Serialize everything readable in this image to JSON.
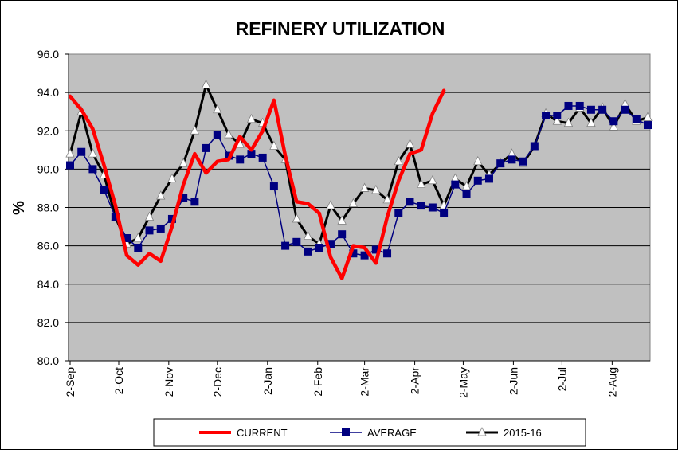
{
  "chart_data": {
    "type": "line",
    "title": "REFINERY UTILIZATION",
    "ylabel": "%",
    "xlabel": "",
    "ylim": [
      80.0,
      96.0
    ],
    "yticks": [
      "80.0",
      "82.0",
      "84.0",
      "86.0",
      "88.0",
      "90.0",
      "92.0",
      "94.0",
      "96.0"
    ],
    "xticks": [
      "2-Sep",
      "2-Oct",
      "2-Nov",
      "2-Dec",
      "2-Jan",
      "2-Feb",
      "2-Mar",
      "2-Apr",
      "2-May",
      "2-Jun",
      "2-Jul",
      "2-Aug"
    ],
    "x_range_weeks": [
      0,
      51
    ],
    "grid": "horizontal",
    "plot_background": "#C0C0C0",
    "legend_position": "bottom",
    "series": [
      {
        "name": "CURRENT",
        "color": "#FF0000",
        "marker": "none",
        "x": [
          0,
          1,
          2,
          3,
          4,
          5,
          6,
          7,
          8,
          9,
          10,
          11,
          12,
          13,
          14,
          15,
          16,
          17,
          18,
          19,
          20,
          21,
          22,
          23,
          24,
          25,
          26,
          27,
          28,
          29,
          30,
          31,
          32,
          33
        ],
        "values": [
          93.8,
          93.1,
          92.1,
          90.2,
          88.1,
          85.5,
          85.0,
          85.6,
          85.2,
          87.0,
          89.2,
          90.8,
          89.8,
          90.4,
          90.5,
          91.7,
          91.0,
          92.0,
          93.6,
          90.7,
          88.3,
          88.2,
          87.7,
          85.4,
          84.3,
          86.0,
          85.9,
          85.1,
          87.5,
          89.4,
          90.8,
          91.0,
          92.9,
          94.1
        ]
      },
      {
        "name": "AVERAGE",
        "color": "#000080",
        "marker": "square",
        "x": [
          0,
          1,
          2,
          3,
          4,
          5,
          6,
          7,
          8,
          9,
          10,
          11,
          12,
          13,
          14,
          15,
          16,
          17,
          18,
          19,
          20,
          21,
          22,
          23,
          24,
          25,
          26,
          27,
          28,
          29,
          30,
          31,
          32,
          33,
          34,
          35,
          36,
          37,
          38,
          39,
          40,
          41,
          42,
          43,
          44,
          45,
          46,
          47,
          48,
          49,
          50,
          51
        ],
        "values": [
          90.2,
          90.9,
          90.0,
          88.9,
          87.5,
          86.4,
          85.9,
          86.8,
          86.9,
          87.4,
          88.5,
          88.3,
          91.1,
          91.8,
          90.7,
          90.5,
          90.8,
          90.6,
          89.1,
          86.0,
          86.2,
          85.7,
          85.9,
          86.1,
          86.6,
          85.6,
          85.5,
          85.8,
          85.6,
          87.7,
          88.3,
          88.1,
          88.0,
          87.7,
          89.2,
          88.7,
          89.4,
          89.5,
          90.3,
          90.5,
          90.4,
          91.2,
          92.8,
          92.8,
          93.3,
          93.3,
          93.1,
          93.1,
          92.5,
          93.1,
          92.6,
          92.3
        ]
      },
      {
        "name": "2015-16",
        "color": "#000000",
        "marker": "triangle",
        "x": [
          0,
          1,
          2,
          3,
          4,
          5,
          6,
          7,
          8,
          9,
          10,
          11,
          12,
          13,
          14,
          15,
          16,
          17,
          18,
          19,
          20,
          21,
          22,
          23,
          24,
          25,
          26,
          27,
          28,
          29,
          30,
          31,
          32,
          33,
          34,
          35,
          36,
          37,
          38,
          39,
          40,
          41,
          42,
          43,
          44,
          45,
          46,
          47,
          48,
          49,
          50,
          51
        ],
        "values": [
          90.8,
          93.0,
          90.8,
          89.7,
          87.5,
          86.1,
          86.4,
          87.5,
          88.6,
          89.5,
          90.3,
          92.0,
          94.4,
          93.1,
          91.8,
          91.3,
          92.6,
          92.4,
          91.2,
          90.5,
          87.4,
          86.5,
          86.1,
          88.1,
          87.3,
          88.2,
          89.0,
          88.9,
          88.4,
          90.4,
          91.3,
          89.2,
          89.4,
          88.1,
          89.5,
          89.1,
          90.4,
          89.7,
          90.3,
          90.8,
          90.3,
          91.2,
          92.9,
          92.5,
          92.4,
          93.2,
          92.4,
          93.2,
          92.2,
          93.4,
          92.5,
          92.7
        ]
      }
    ]
  }
}
